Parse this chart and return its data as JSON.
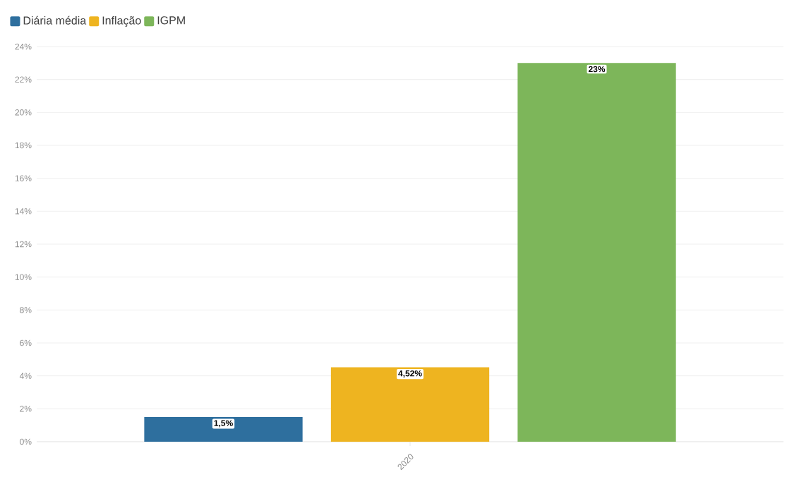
{
  "chart_data": {
    "type": "bar",
    "categories": [
      "2020"
    ],
    "series": [
      {
        "name": "Diária média",
        "color": "#2e6f9e",
        "values": [
          1.5
        ],
        "value_labels": [
          "1,5%"
        ]
      },
      {
        "name": "Inflação",
        "color": "#eeb420",
        "values": [
          4.52
        ],
        "value_labels": [
          "4,52%"
        ]
      },
      {
        "name": "IGPM",
        "color": "#7db65a",
        "values": [
          23
        ],
        "value_labels": [
          "23%"
        ]
      }
    ],
    "ylim": [
      0,
      24
    ],
    "yticks": [
      {
        "value": 0,
        "label": "0%"
      },
      {
        "value": 2,
        "label": "2%"
      },
      {
        "value": 4,
        "label": "4%"
      },
      {
        "value": 6,
        "label": "6%"
      },
      {
        "value": 8,
        "label": "8%"
      },
      {
        "value": 10,
        "label": "10%"
      },
      {
        "value": 12,
        "label": "12%"
      },
      {
        "value": 14,
        "label": "14%"
      },
      {
        "value": 16,
        "label": "16%"
      },
      {
        "value": 18,
        "label": "18%"
      },
      {
        "value": 20,
        "label": "20%"
      },
      {
        "value": 22,
        "label": "22%"
      },
      {
        "value": 24,
        "label": "24%"
      }
    ],
    "grid": "y",
    "legend": "top left"
  }
}
